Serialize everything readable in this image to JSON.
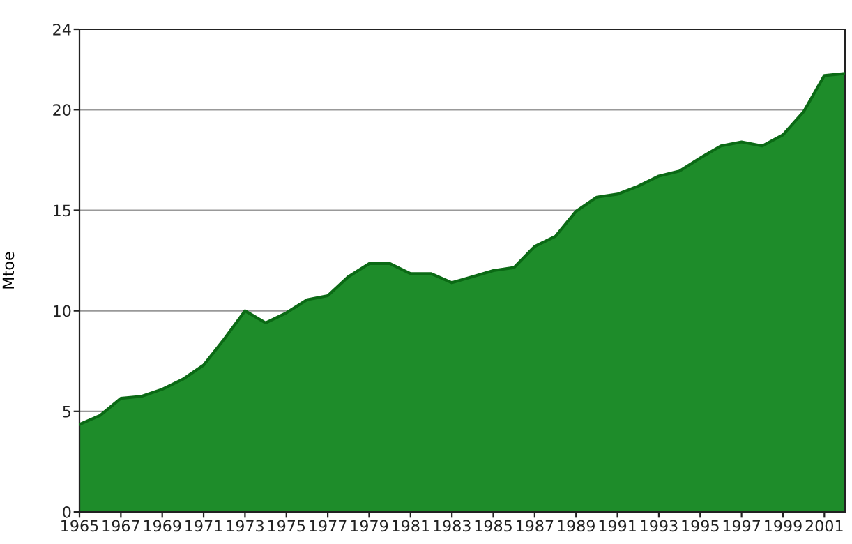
{
  "chart_data": {
    "type": "area",
    "ylabel": "Mtoe",
    "x": [
      1965,
      1966,
      1967,
      1968,
      1969,
      1970,
      1971,
      1972,
      1973,
      1974,
      1975,
      1976,
      1977,
      1978,
      1979,
      1980,
      1981,
      1982,
      1983,
      1984,
      1985,
      1986,
      1987,
      1988,
      1989,
      1990,
      1991,
      1992,
      1993,
      1994,
      1995,
      1996,
      1997,
      1998,
      1999,
      2000,
      2001,
      2002
    ],
    "series": [
      {
        "color": "#1e8c2a",
        "values": [
          4.35,
          4.8,
          5.65,
          5.75,
          6.1,
          6.6,
          7.3,
          8.6,
          10.0,
          9.4,
          9.9,
          10.55,
          10.75,
          11.7,
          12.35,
          12.35,
          11.85,
          11.85,
          11.4,
          11.7,
          12.0,
          12.15,
          13.2,
          13.7,
          14.95,
          15.65,
          15.8,
          16.2,
          16.7,
          16.95,
          17.6,
          18.2,
          18.4,
          18.2,
          18.75,
          19.9,
          21.7,
          21.8
        ]
      }
    ],
    "xlim": [
      1965,
      2002
    ],
    "xticks": [
      1965,
      1967,
      1969,
      1971,
      1973,
      1975,
      1977,
      1979,
      1981,
      1983,
      1985,
      1987,
      1989,
      1991,
      1993,
      1995,
      1997,
      1999,
      2001
    ],
    "ylim": [
      0,
      24
    ],
    "yticks": [
      0,
      5,
      10,
      15,
      20,
      24
    ],
    "grid": "y",
    "legend": false
  }
}
